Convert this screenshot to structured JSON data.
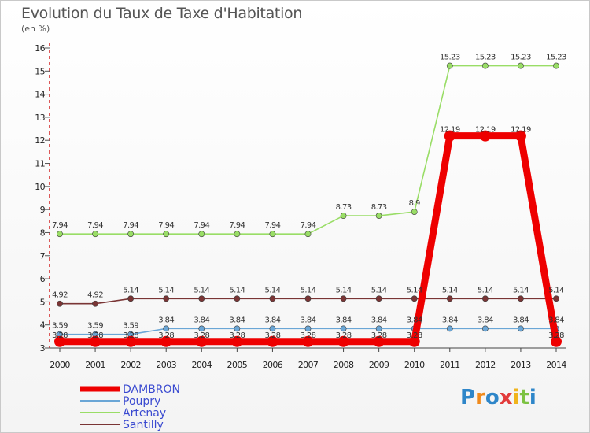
{
  "header": {
    "title": "Evolution du Taux de Taxe d'Habitation",
    "subtitle": "(en %)"
  },
  "brand": {
    "logo_text": "Proxiti",
    "logo_colors": [
      "#2e86c9",
      "#f08a1c",
      "#2e86c9",
      "#e23b3b",
      "#f0b41c",
      "#7cc242",
      "#2e86c9"
    ]
  },
  "chart_data": {
    "type": "line",
    "title": "Evolution du Taux de Taxe d'Habitation",
    "ylabel": "(en %)",
    "xlabel": "",
    "ylim": [
      3,
      16
    ],
    "yticks": [
      3,
      4,
      5,
      6,
      7,
      8,
      9,
      10,
      11,
      12,
      13,
      14,
      15,
      16
    ],
    "categories": [
      "2000",
      "2001",
      "2002",
      "2003",
      "2004",
      "2005",
      "2006",
      "2007",
      "2008",
      "2009",
      "2010",
      "2011",
      "2012",
      "2013",
      "2014"
    ],
    "series": [
      {
        "name": "DAMBRON",
        "color": "#ee0000",
        "values": [
          3.28,
          3.28,
          3.28,
          3.28,
          3.28,
          3.28,
          3.28,
          3.28,
          3.28,
          3.28,
          3.28,
          12.19,
          12.19,
          12.19,
          3.28
        ],
        "labels": [
          "3.28",
          "3.28",
          "3.28",
          "3.28",
          "3.28",
          "3.28",
          "3.28",
          "3.28",
          "3.28",
          "3.28",
          "3.28",
          "12.19",
          "12.19",
          "12.19",
          "3.28"
        ]
      },
      {
        "name": "Poupry",
        "color": "#6aa6d6",
        "values": [
          3.59,
          3.59,
          3.59,
          3.84,
          3.84,
          3.84,
          3.84,
          3.84,
          3.84,
          3.84,
          3.84,
          3.84,
          3.84,
          3.84,
          3.84
        ],
        "labels": [
          "3.59",
          "3.59",
          "3.59",
          "3.84",
          "3.84",
          "3.84",
          "3.84",
          "3.84",
          "3.84",
          "3.84",
          "3.84",
          "3.84",
          "3.84",
          "3.84",
          "3.84"
        ]
      },
      {
        "name": "Artenay",
        "color": "#99dd66",
        "values": [
          7.94,
          7.94,
          7.94,
          7.94,
          7.94,
          7.94,
          7.94,
          7.94,
          8.73,
          8.73,
          8.9,
          15.23,
          15.23,
          15.23,
          15.23
        ],
        "labels": [
          "7.94",
          "7.94",
          "7.94",
          "7.94",
          "7.94",
          "7.94",
          "7.94",
          "7.94",
          "8.73",
          "8.73",
          "8.9",
          "15.23",
          "15.23",
          "15.23",
          "15.23"
        ]
      },
      {
        "name": "Santilly",
        "color": "#7a3535",
        "values": [
          4.92,
          4.92,
          5.14,
          5.14,
          5.14,
          5.14,
          5.14,
          5.14,
          5.14,
          5.14,
          5.14,
          5.14,
          5.14,
          5.14,
          5.14
        ],
        "labels": [
          "4.92",
          "4.92",
          "5.14",
          "5.14",
          "5.14",
          "5.14",
          "5.14",
          "5.14",
          "5.14",
          "5.14",
          "5.14",
          "5.14",
          "5.14",
          "5.14",
          "5.14"
        ]
      }
    ],
    "legend": [
      "DAMBRON",
      "Poupry",
      "Artenay",
      "Santilly"
    ],
    "legend_position": "bottom-left",
    "grid": false
  }
}
